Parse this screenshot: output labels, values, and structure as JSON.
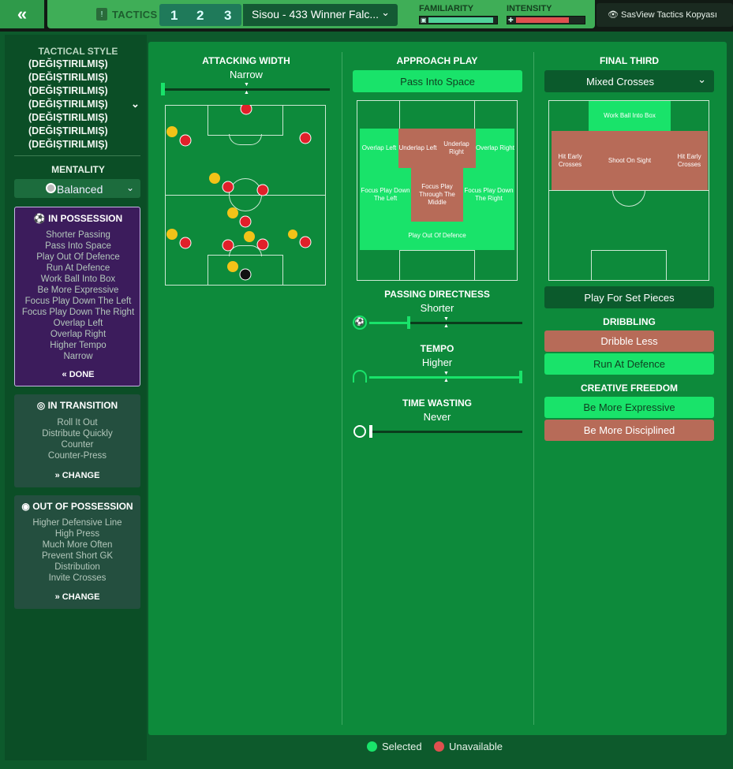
{
  "topbar": {
    "back_icon": "double-chevron-left-icon",
    "tactics_label": "TACTICS",
    "slots": [
      "1",
      "2",
      "3"
    ],
    "tactic_name": "Sisou - 433 Winner Falc...",
    "familiarity_label": "FAMILIARITY",
    "intensity_label": "INTENSITY",
    "familiarity_level": 0.95,
    "intensity_level": 0.78,
    "sasview_label": "SasView Tactics Kopyası"
  },
  "sidebar": {
    "tactical_style_title": "TACTICAL STYLE",
    "style_lines": [
      "(DEĞIŞTIRILMIŞ)",
      "(DEĞIŞTIRILMIŞ)",
      "(DEĞIŞTIRILMIŞ)",
      "(DEĞIŞTIRILMIŞ)",
      "(DEĞIŞTIRILMIŞ)",
      "(DEĞIŞTIRILMIŞ)",
      "(DEĞIŞTIRILMIŞ)"
    ],
    "mentality_title": "MENTALITY",
    "mentality_value": "Balanced",
    "in_possession": {
      "title": "IN POSSESSION",
      "items": [
        "Shorter Passing",
        "Pass Into Space",
        "Play Out Of Defence",
        "Run At Defence",
        "Work Ball Into Box",
        "Be More Expressive",
        "Focus Play Down The Left",
        "Focus Play Down The Right",
        "Overlap Left",
        "Overlap Right",
        "Higher Tempo",
        "Narrow"
      ],
      "button": "DONE"
    },
    "in_transition": {
      "title": "IN TRANSITION",
      "items": [
        "Roll It Out",
        "Distribute Quickly",
        "Counter",
        "Counter-Press"
      ],
      "button": "CHANGE"
    },
    "out_of_possession": {
      "title": "OUT OF POSSESSION",
      "items": [
        "Higher Defensive Line",
        "High Press",
        "Much More Often",
        "Prevent Short GK",
        "Distribution",
        "Invite Crosses"
      ],
      "button": "CHANGE"
    }
  },
  "attacking": {
    "title": "ATTACKING WIDTH",
    "value": "Narrow",
    "level": 0.0
  },
  "approach": {
    "title": "APPROACH PLAY",
    "selected": "Pass Into Space",
    "zones": {
      "overlap_left": "Overlap Left",
      "underlap_left": "Underlap Left",
      "underlap_right": "Underlap Right",
      "overlap_right": "Overlap Right",
      "focus_left": "Focus Play Down The Left",
      "focus_middle": "Focus Play Through The Middle",
      "focus_right": "Focus Play Down The Right",
      "play_out": "Play Out Of Defence"
    },
    "directness_title": "PASSING DIRECTNESS",
    "directness_value": "Shorter",
    "directness_level": 0.25,
    "tempo_title": "TEMPO",
    "tempo_value": "Higher",
    "tempo_level": 1.0,
    "timewasting_title": "TIME WASTING",
    "timewasting_value": "Never",
    "timewasting_level": 0.0
  },
  "final_third": {
    "title": "FINAL THIRD",
    "dropdown": "Mixed Crosses",
    "zones": {
      "work_ball": "Work Ball Into Box",
      "hit_early_left": "Hit Early Crosses",
      "shoot": "Shoot On Sight",
      "hit_early_right": "Hit Early Crosses"
    },
    "set_pieces": "Play For Set Pieces",
    "dribbling_title": "DRIBBLING",
    "dribble_less": "Dribble Less",
    "run_at_defence": "Run At Defence",
    "creative_title": "CREATIVE FREEDOM",
    "be_more_expressive": "Be More Expressive",
    "be_more_disciplined": "Be More Disciplined"
  },
  "legend": {
    "selected": "Selected",
    "unavailable": "Unavailable"
  },
  "colors": {
    "selected": "#19e36a",
    "unavailable": "#e0504f",
    "panel": "#0d8a3b",
    "in_possession_bg": "#3c1c5c"
  }
}
